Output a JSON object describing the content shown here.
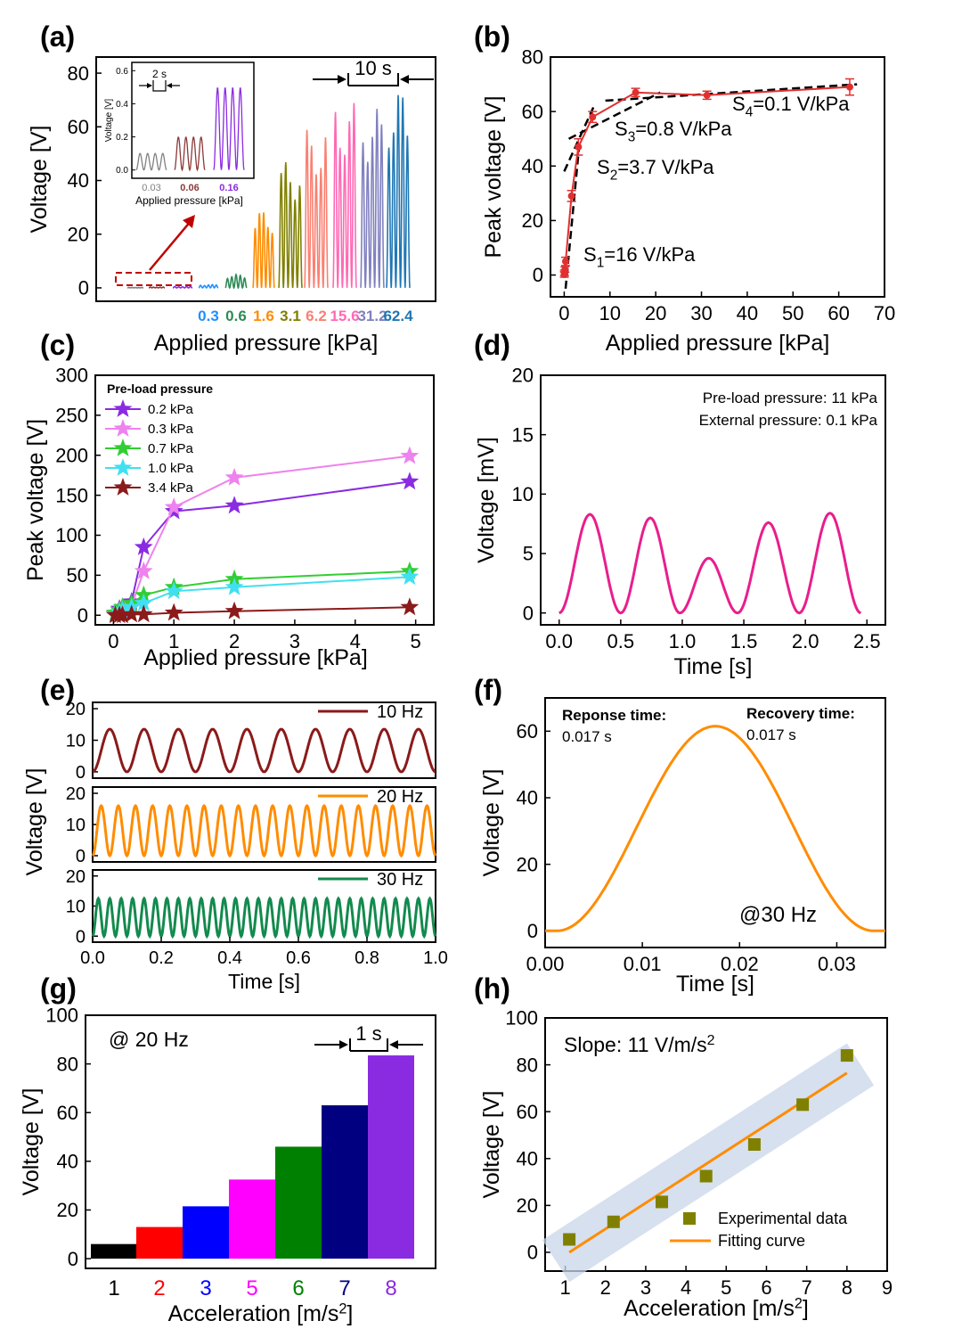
{
  "figure": {
    "panel_labels": [
      "(a)",
      "(b)",
      "(c)",
      "(d)",
      "(e)",
      "(f)",
      "(g)",
      "(h)"
    ]
  },
  "chart_data": [
    {
      "panel": "(a)",
      "type": "bar",
      "xlabel": "Applied pressure [kPa]",
      "ylabel": "Voltage [V]",
      "ylim": [
        -5,
        86
      ],
      "yticks": [
        0,
        20,
        40,
        60,
        80
      ],
      "categories": [
        "0.03",
        "0.06",
        "0.16",
        "0.3",
        "0.6",
        "1.6",
        "3.1",
        "6.2",
        "15.6",
        "31.2",
        "62.4"
      ],
      "visible_tick_labels": [
        "0.3",
        "0.6",
        "1.6",
        "3.1",
        "6.2",
        "15.6",
        "31.2",
        "62.4"
      ],
      "values": [
        0.15,
        0.3,
        0.5,
        1.2,
        5,
        29,
        47,
        59,
        69,
        67,
        74
      ],
      "colors": [
        "#808080",
        "#8b3a3a",
        "#8a2be2",
        "#1e90ff",
        "#2e8b57",
        "#ff8c00",
        "#808000",
        "#fa8072",
        "#ff69b4",
        "#8080c0",
        "#1f77b4"
      ],
      "annotation": "10 s",
      "inset": {
        "ylabel": "Voltage [V]",
        "xlabel": "Applied pressure [kPa]",
        "yticks": [
          "0.0",
          "0.2",
          "0.4",
          "0.6"
        ],
        "categories": [
          "0.03",
          "0.06",
          "0.16"
        ],
        "values": [
          0.1,
          0.2,
          0.5
        ],
        "annotation": "2 s"
      }
    },
    {
      "panel": "(b)",
      "type": "scatter",
      "xlabel": "Applied pressure [kPa]",
      "ylabel": "Peak voltage [V]",
      "xlim": [
        -3,
        70
      ],
      "ylim": [
        -8,
        80
      ],
      "xticks": [
        0,
        10,
        20,
        30,
        40,
        50,
        60,
        70
      ],
      "yticks": [
        0,
        20,
        40,
        60,
        80
      ],
      "x": [
        0.03,
        0.06,
        0.16,
        0.3,
        1.6,
        3.1,
        6.2,
        15.6,
        31.2,
        62.4
      ],
      "y": [
        0.2,
        0.8,
        2,
        5,
        29,
        47,
        58,
        67,
        66,
        69
      ],
      "errors": [
        1,
        1,
        1,
        1.5,
        2,
        3,
        2,
        1.5,
        1.5,
        3
      ],
      "fit_lines": [
        {
          "label": "S1=16 V/kPa",
          "x": [
            0.3,
            3.3
          ],
          "y": [
            -5,
            48
          ]
        },
        {
          "label": "S2=3.7 V/kPa",
          "x": [
            0,
            6.5
          ],
          "y": [
            38,
            62
          ]
        },
        {
          "label": "S3=0.8 V/kPa",
          "x": [
            1,
            21
          ],
          "y": [
            50,
            67
          ]
        },
        {
          "label": "S4=0.1 V/kPa",
          "x": [
            9,
            64
          ],
          "y": [
            64,
            70
          ]
        }
      ],
      "annotations": [
        {
          "base": "S",
          "sub": "1",
          "rest": "=16 V/kPa"
        },
        {
          "base": "S",
          "sub": "2",
          "rest": "=3.7 V/kPa"
        },
        {
          "base": "S",
          "sub": "3",
          "rest": "=0.8 V/kPa"
        },
        {
          "base": "S",
          "sub": "4",
          "rest": "=0.1 V/kPa"
        }
      ]
    },
    {
      "panel": "(c)",
      "type": "line",
      "xlabel": "Applied pressure [kPa]",
      "ylabel": "Peak voltage [V]",
      "xlim": [
        -0.3,
        5.3
      ],
      "ylim": [
        -12,
        300
      ],
      "xticks": [
        0,
        1,
        2,
        3,
        4,
        5
      ],
      "yticks": [
        0,
        50,
        100,
        150,
        200,
        250,
        300
      ],
      "legend_title": "Pre-load pressure",
      "legend_position": "top-left",
      "x": [
        0.03,
        0.1,
        0.15,
        0.3,
        0.5,
        1.0,
        2.0,
        4.9
      ],
      "series": [
        {
          "name": "0.2 kPa",
          "color": "#8a2be2",
          "values": [
            2,
            8,
            10,
            17,
            85,
            130,
            137,
            167
          ]
        },
        {
          "name": "0.3 kPa",
          "color": "#ee82ee",
          "values": [
            2,
            6,
            8,
            12,
            55,
            135,
            172,
            199
          ]
        },
        {
          "name": "0.7 kPa",
          "color": "#32cd32",
          "values": [
            3,
            6,
            10,
            15,
            25,
            35,
            45,
            55
          ]
        },
        {
          "name": "1.0 kPa",
          "color": "#40e0f0",
          "values": [
            1,
            4,
            6,
            10,
            15,
            30,
            35,
            48
          ]
        },
        {
          "name": "3.4 kPa",
          "color": "#8b1a1a",
          "values": [
            0,
            0,
            0,
            1,
            1,
            3,
            5,
            10
          ]
        }
      ]
    },
    {
      "panel": "(d)",
      "type": "line",
      "xlabel": "Time [s]",
      "ylabel": "Voltage [mV]",
      "xlim": [
        -0.15,
        2.65
      ],
      "ylim": [
        -1,
        20
      ],
      "xticks": [
        "0.0",
        "0.5",
        "1.0",
        "1.5",
        "2.0",
        "2.5"
      ],
      "yticks": [
        0,
        5,
        10,
        15,
        20
      ],
      "color": "#e91e8c",
      "peak_times": [
        0.24,
        0.73,
        1.2,
        1.68,
        2.18
      ],
      "peak_values": [
        8.3,
        8.0,
        4.6,
        7.6,
        8.4
      ],
      "trough_times": [
        0,
        0.5,
        0.98,
        1.45,
        1.95,
        2.45
      ],
      "annotations": [
        "Pre-load pressure: 11 kPa",
        "External pressure: 0.1 kPa"
      ]
    },
    {
      "panel": "(e)",
      "type": "line",
      "xlabel": "Time [s]",
      "ylabel": "Voltage [V]",
      "xlim": [
        0,
        1.0
      ],
      "xticks": [
        "0.0",
        "0.2",
        "0.4",
        "0.6",
        "0.8",
        "1.0"
      ],
      "yticks": [
        0,
        10,
        20
      ],
      "series": [
        {
          "name": "10 Hz",
          "color": "#8b1a1a",
          "frequency": 10,
          "amplitude": 13.5
        },
        {
          "name": "20 Hz",
          "color": "#ff8c00",
          "frequency": 20,
          "amplitude": 16
        },
        {
          "name": "30 Hz",
          "color": "#138a4e",
          "frequency": 30,
          "amplitude": 12.5
        }
      ]
    },
    {
      "panel": "(f)",
      "type": "line",
      "xlabel": "Time [s]",
      "ylabel": "Voltage [V]",
      "xlim": [
        0,
        0.035
      ],
      "ylim": [
        -5,
        70
      ],
      "xticks": [
        "0.00",
        "0.01",
        "0.02",
        "0.03"
      ],
      "yticks": [
        0,
        20,
        40,
        60
      ],
      "color": "#ff8c00",
      "peak_time": 0.0175,
      "peak_value": 61.5,
      "pulse_start": 0.0012,
      "pulse_end": 0.0338,
      "annotations": [
        "Reponse time:",
        "0.017 s",
        "Recovery time:",
        "0.017 s",
        "@30 Hz"
      ]
    },
    {
      "panel": "(g)",
      "type": "bar",
      "xlabel": "Acceleration [m/s2]",
      "ylabel": "Voltage [V]",
      "ylim": [
        -4,
        100
      ],
      "yticks": [
        0,
        20,
        40,
        60,
        80,
        100
      ],
      "categories": [
        "1",
        "2",
        "3",
        "5",
        "6",
        "7",
        "8"
      ],
      "values": [
        6,
        13,
        21.5,
        32.5,
        46,
        63,
        83.5
      ],
      "colors": [
        "#000000",
        "#ff0000",
        "#0000ff",
        "#ff00ff",
        "#008000",
        "#000080",
        "#8a2be2"
      ],
      "annotations": [
        "@ 20 Hz",
        "1 s"
      ]
    },
    {
      "panel": "(h)",
      "type": "scatter",
      "xlabel": "Acceleration [m/s2]",
      "ylabel": "Voltage [V]",
      "xlim": [
        0.5,
        9
      ],
      "ylim": [
        -8,
        100
      ],
      "xticks": [
        1,
        2,
        3,
        4,
        5,
        6,
        7,
        8,
        9
      ],
      "yticks": [
        0,
        20,
        40,
        60,
        80,
        100
      ],
      "x": [
        1.1,
        2.2,
        3.4,
        4.5,
        5.7,
        6.9,
        8.0
      ],
      "y": [
        5.5,
        13,
        21.5,
        32.5,
        46,
        63,
        84
      ],
      "fit": {
        "x": [
          1.1,
          8.0
        ],
        "y": [
          0,
          76.5
        ]
      },
      "legend": [
        "Experimental data",
        "Fitting curve"
      ],
      "legend_position": "bottom-right",
      "annotation": "Slope: 11 V/m/s2",
      "marker_color": "#808000",
      "fit_color": "#ff8c00"
    }
  ]
}
